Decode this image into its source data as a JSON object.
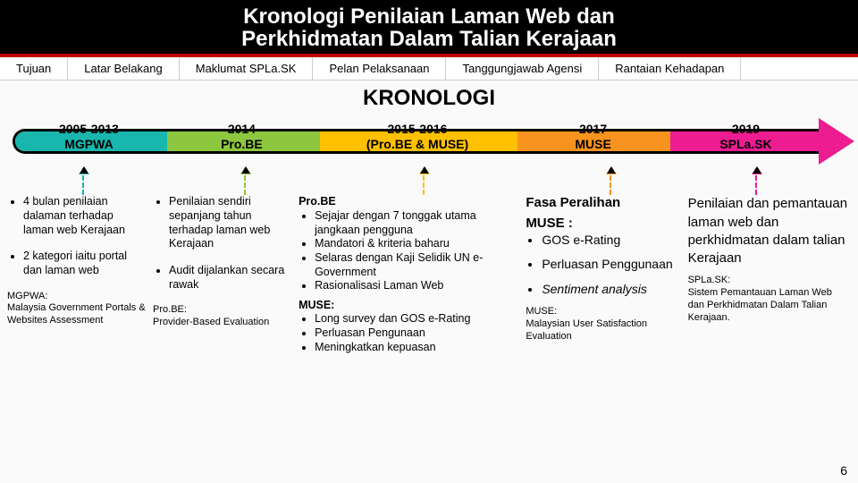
{
  "banner": {
    "line1": "Kronologi Penilaian Laman Web dan",
    "line2": "Perkhidmatan Dalam Talian Kerajaan",
    "bg": "#000000",
    "fg": "#ffffff",
    "accent": "#c00000",
    "fontsize": 24
  },
  "tabs": [
    "Tujuan",
    "Latar Belakang",
    "Maklumat SPLa.SK",
    "Pelan Pelaksanaan",
    "Tanggungjawab Agensi",
    "Rantaian Kehadapan"
  ],
  "section_title": "KRONOLOGI",
  "timeline": {
    "segments": [
      {
        "label1": "2005-2013",
        "label2": "MGPWA",
        "color": "#18b6ad",
        "flex": 1.0
      },
      {
        "label1": "2014",
        "label2": "Pro.BE",
        "color": "#8dc63f",
        "flex": 1.0
      },
      {
        "label1": "2015-2016",
        "label2": "(Pro.BE & MUSE)",
        "color": "#ffc000",
        "flex": 1.3
      },
      {
        "label1": "2017",
        "label2": "MUSE",
        "color": "#f7931e",
        "flex": 1.0
      },
      {
        "label1": "2019",
        "label2": "SPLa.SK",
        "color": "#ed1c91",
        "flex": 1.0
      }
    ],
    "arrow_color": "#ed1c91",
    "border_color": "#000000",
    "border_width": 3,
    "label_fontsize": 14
  },
  "dash_arrows": [
    {
      "left_pct": 7,
      "color": "#18b6ad"
    },
    {
      "left_pct": 27,
      "color": "#8dc63f"
    },
    {
      "left_pct": 49,
      "color": "#ffc000"
    },
    {
      "left_pct": 72,
      "color": "#f7931e"
    },
    {
      "left_pct": 90,
      "color": "#ed1c91"
    }
  ],
  "columns": [
    {
      "width_pct": 17,
      "bullets": [
        "4 bulan penilaian dalaman terhadap laman web Kerajaan",
        "2 kategori iaitu portal dan laman web"
      ],
      "footnote": "MGPWA:\nMalaysia Government Portals & Websites Assessment"
    },
    {
      "width_pct": 17,
      "bullets": [
        "Penilaian sendiri sepanjang tahun terhadap laman web Kerajaan",
        "Audit dijalankan secara rawak"
      ],
      "footnote": "Pro.BE:\nProvider-Based Evaluation"
    },
    {
      "width_pct": 27,
      "heading1": "Pro.BE",
      "bullets1": [
        "Sejajar dengan 7 tonggak utama jangkaan pengguna",
        "Mandatori & kriteria baharu",
        "Selaras dengan Kaji Selidik UN e-Government",
        "Rasionalisasi Laman Web"
      ],
      "heading2": "MUSE:",
      "bullets2": [
        "Long survey dan GOS e-Rating",
        "Perluasan Pengunaan",
        "Meningkatkan kepuasan"
      ]
    },
    {
      "width_pct": 19,
      "heading1": "Fasa Peralihan",
      "heading2": "MUSE :",
      "bullets": [
        "GOS e-Rating",
        "Perluasan Penggunaan",
        "Sentiment analysis"
      ],
      "italic_last": true,
      "footnote": "MUSE:\nMalaysian User Satisfaction Evaluation"
    },
    {
      "width_pct": 20,
      "para": "Penilaian dan pemantauan laman web dan perkhidmatan dalam talian Kerajaan",
      "footnote": "SPLa.SK:\nSistem Pemantauan Laman Web dan Perkhidmatan Dalam Talian Kerajaan."
    }
  ],
  "page_number": "6"
}
